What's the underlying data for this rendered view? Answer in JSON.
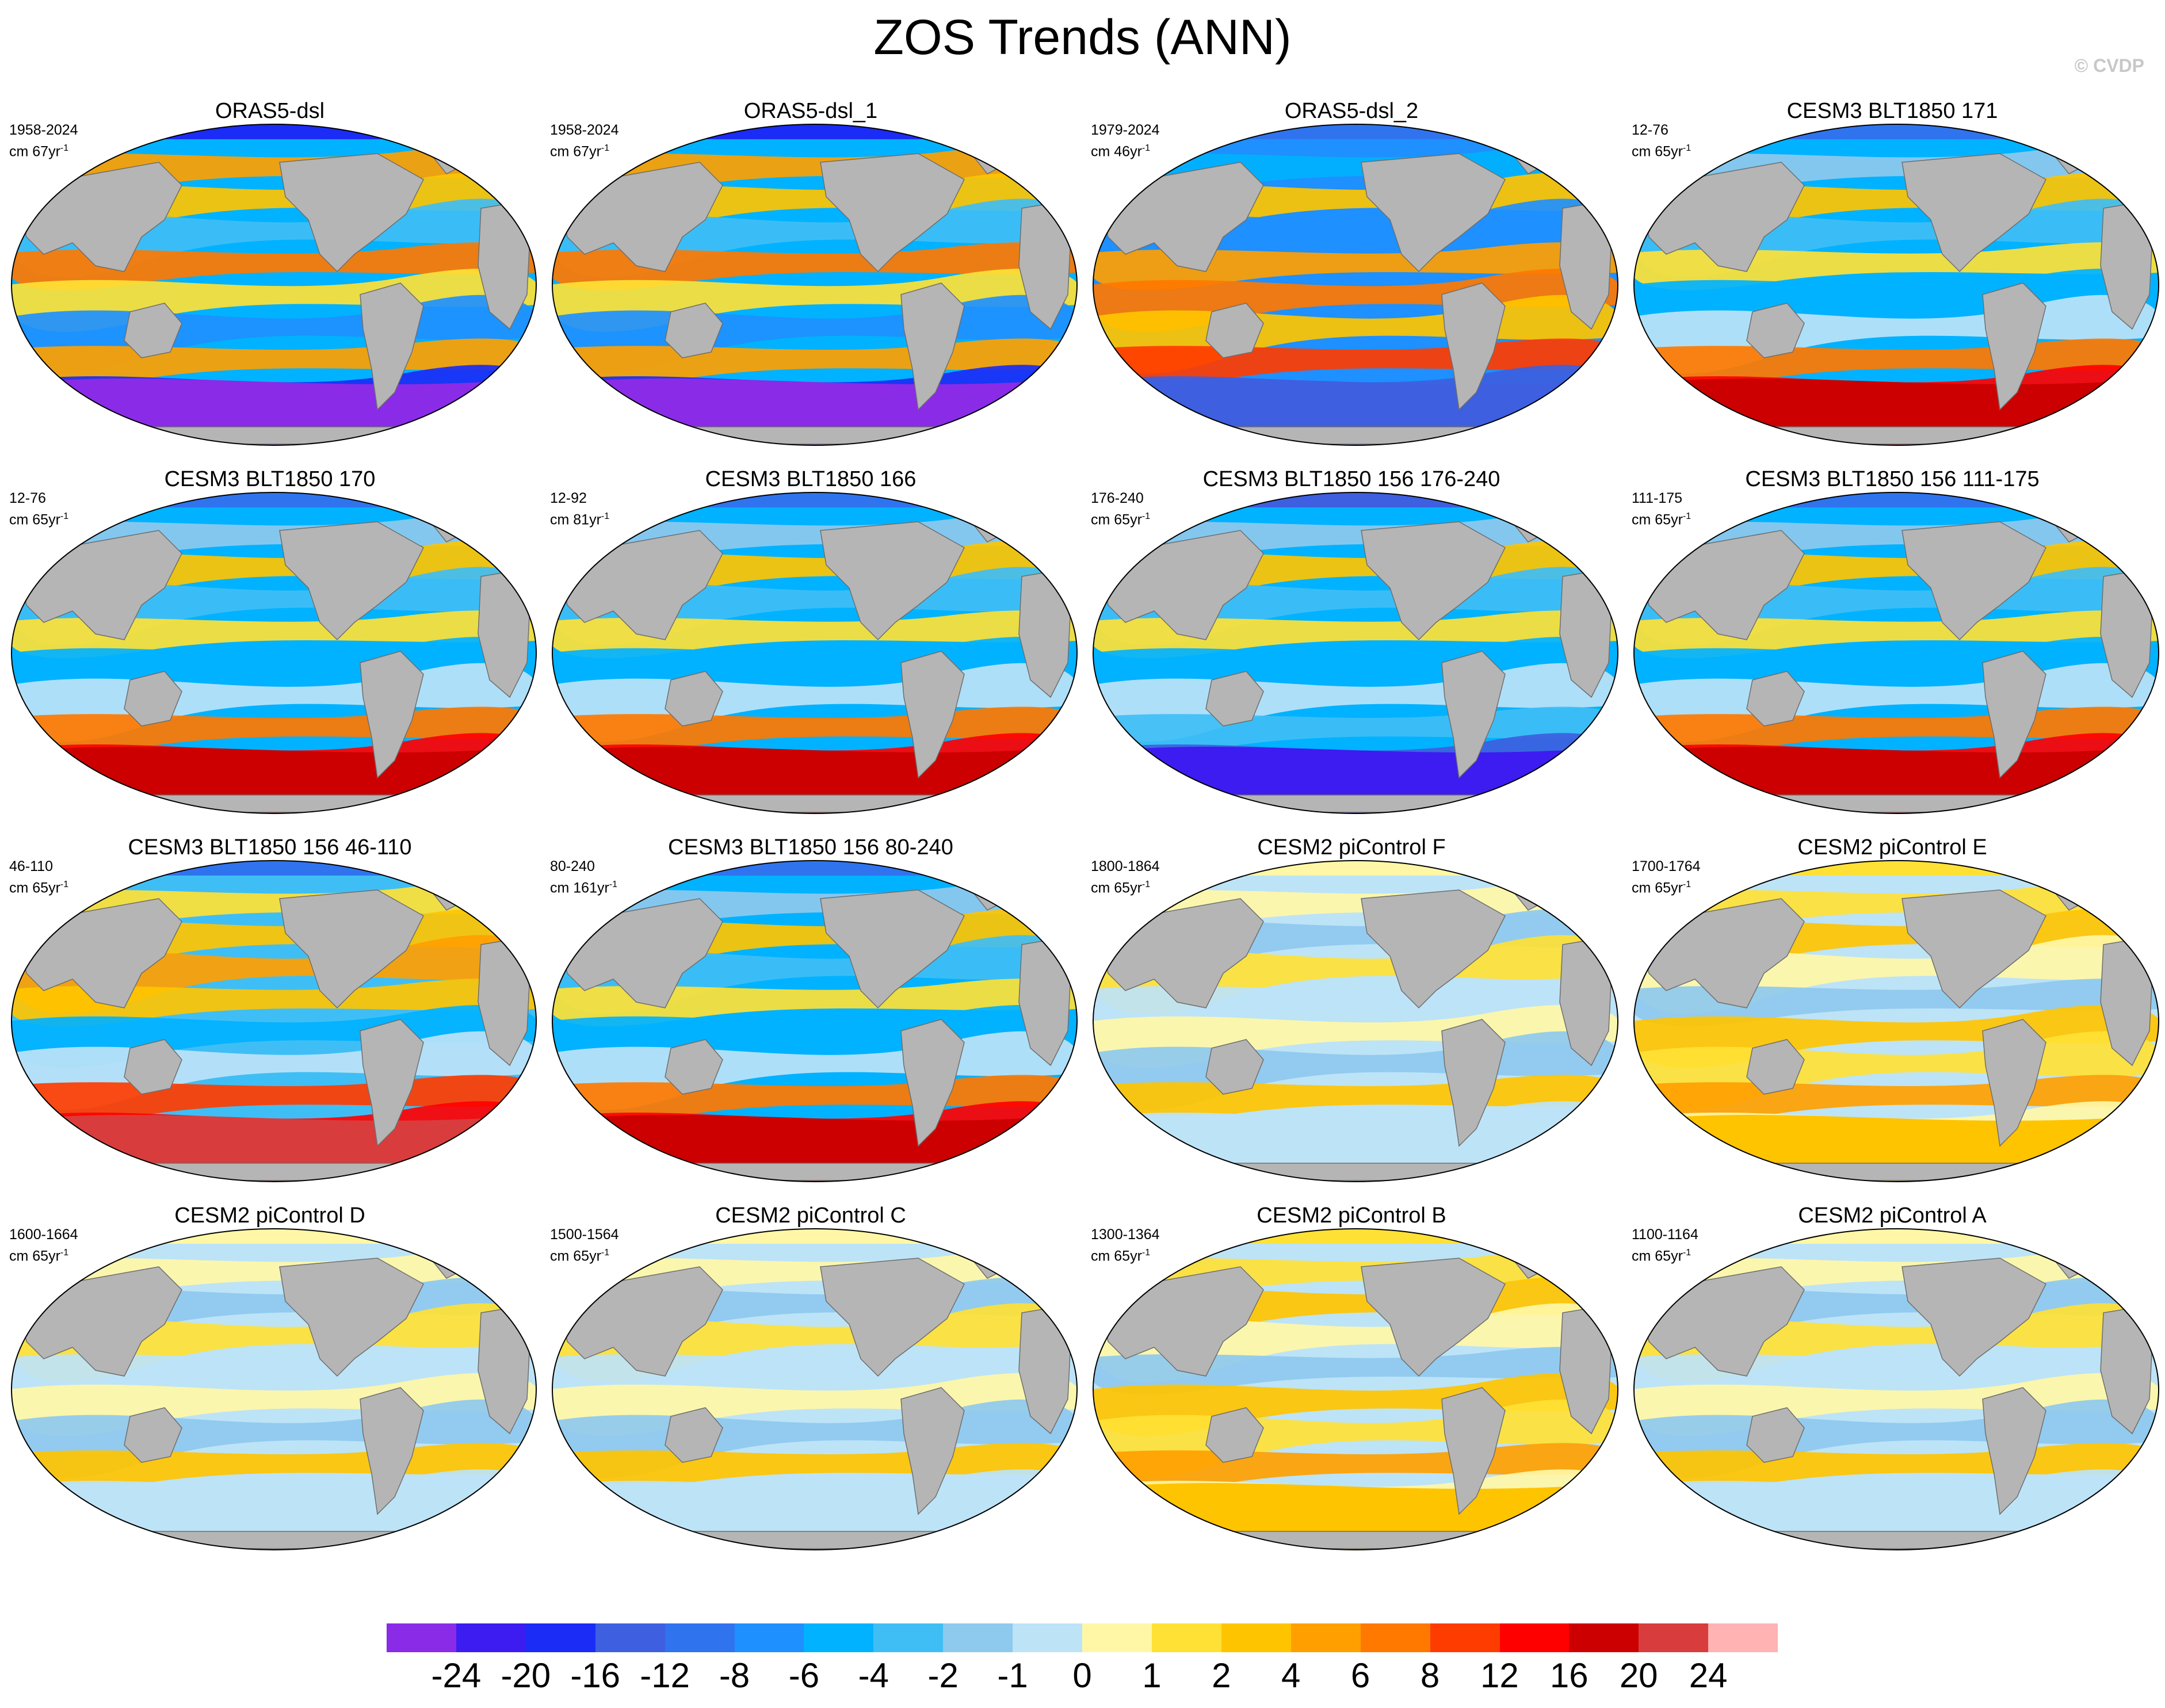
{
  "figure": {
    "title": "ZOS Trends (ANN)",
    "credit": "© CVDP"
  },
  "panels": [
    {
      "title": "ORAS5-dsl",
      "years": "1958-2024",
      "units": "cm 67yr",
      "exp": "-1",
      "style": "obs"
    },
    {
      "title": "ORAS5-dsl_1",
      "years": "1958-2024",
      "units": "cm 67yr",
      "exp": "-1",
      "style": "obs"
    },
    {
      "title": "ORAS5-dsl_2",
      "years": "1979-2024",
      "units": "cm 46yr",
      "exp": "-1",
      "style": "obs2"
    },
    {
      "title": "CESM3 BLT1850 171",
      "years": "12-76",
      "units": "cm 65yr",
      "exp": "-1",
      "style": "cesm3"
    },
    {
      "title": "CESM3 BLT1850 170",
      "years": "12-76",
      "units": "cm 65yr",
      "exp": "-1",
      "style": "cesm3"
    },
    {
      "title": "CESM3 BLT1850 166",
      "years": "12-92",
      "units": "cm 81yr",
      "exp": "-1",
      "style": "cesm3"
    },
    {
      "title": "CESM3 BLT1850 156 176-240",
      "years": "176-240",
      "units": "cm 65yr",
      "exp": "-1",
      "style": "cesm3neg"
    },
    {
      "title": "CESM3 BLT1850 156 111-175",
      "years": "111-175",
      "units": "cm 65yr",
      "exp": "-1",
      "style": "cesm3"
    },
    {
      "title": "CESM3 BLT1850 156 46-110",
      "years": "46-110",
      "units": "cm 65yr",
      "exp": "-1",
      "style": "cesm3warm"
    },
    {
      "title": "CESM3 BLT1850 156 80-240",
      "years": "80-240",
      "units": "cm 161yr",
      "exp": "-1",
      "style": "cesm3"
    },
    {
      "title": "CESM2 piControl F",
      "years": "1800-1864",
      "units": "cm 65yr",
      "exp": "-1",
      "style": "cesm2"
    },
    {
      "title": "CESM2 piControl E",
      "years": "1700-1764",
      "units": "cm 65yr",
      "exp": "-1",
      "style": "cesm2warm"
    },
    {
      "title": "CESM2 piControl D",
      "years": "1600-1664",
      "units": "cm 65yr",
      "exp": "-1",
      "style": "cesm2"
    },
    {
      "title": "CESM2 piControl C",
      "years": "1500-1564",
      "units": "cm 65yr",
      "exp": "-1",
      "style": "cesm2"
    },
    {
      "title": "CESM2 piControl B",
      "years": "1300-1364",
      "units": "cm 65yr",
      "exp": "-1",
      "style": "cesm2warm"
    },
    {
      "title": "CESM2 piControl A",
      "years": "1100-1164",
      "units": "cm 65yr",
      "exp": "-1",
      "style": "cesm2"
    }
  ],
  "colorbar": {
    "labels": [
      "-24",
      "-20",
      "-16",
      "-12",
      "-8",
      "-6",
      "-4",
      "-2",
      "-1",
      "0",
      "1",
      "2",
      "4",
      "6",
      "8",
      "12",
      "16",
      "20",
      "24"
    ],
    "colors": [
      "#8a2be8",
      "#3c1cf0",
      "#1a2cf5",
      "#3d5fe0",
      "#2f74ee",
      "#1e90ff",
      "#00b2ff",
      "#3fbef5",
      "#8ec9ee",
      "#bde3f7",
      "#fff7a6",
      "#ffe135",
      "#ffc400",
      "#ffa000",
      "#ff7800",
      "#ff3c00",
      "#ff0000",
      "#cc0000",
      "#d93c3c",
      "#ffb3b3"
    ]
  },
  "colors": {
    "land": "#b5b5b5",
    "coast": "#6e6e6e"
  }
}
